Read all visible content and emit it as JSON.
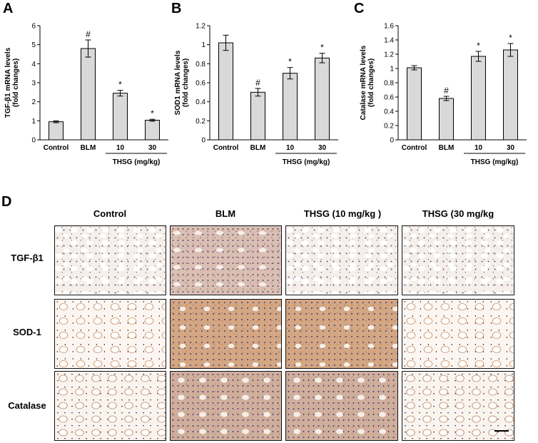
{
  "chart_data": [
    {
      "panel": "A",
      "type": "bar",
      "categories": [
        "Control",
        "BLM",
        "10",
        "30"
      ],
      "values": [
        0.95,
        4.8,
        2.45,
        1.03
      ],
      "errors": [
        0.05,
        0.45,
        0.15,
        0.05
      ],
      "annotations": [
        "",
        "#",
        "*",
        "*"
      ],
      "ylabel": [
        "TGF-β1 mRNA levels",
        "(fold changes)"
      ],
      "ylim": [
        0,
        6
      ],
      "yticks": [
        "0",
        "1",
        "2",
        "3",
        "4",
        "5",
        "6"
      ],
      "group_label": "THSG (mg/kg)",
      "bar_color": "#d9d9d9"
    },
    {
      "panel": "B",
      "type": "bar",
      "categories": [
        "Control",
        "BLM",
        "10",
        "30"
      ],
      "values": [
        1.02,
        0.5,
        0.7,
        0.86
      ],
      "errors": [
        0.08,
        0.04,
        0.06,
        0.05
      ],
      "annotations": [
        "",
        "#",
        "*",
        "*"
      ],
      "ylabel": [
        "SOD1 mRNA levels",
        "(fold changes)"
      ],
      "ylim": [
        0,
        1.2
      ],
      "yticks": [
        "0",
        "0.2",
        "0.4",
        "0.6",
        "0.8",
        "1",
        "1.2"
      ],
      "group_label": "THSG (mg/kg)",
      "bar_color": "#d9d9d9"
    },
    {
      "panel": "C",
      "type": "bar",
      "categories": [
        "Control",
        "BLM",
        "10",
        "30"
      ],
      "values": [
        1.01,
        0.58,
        1.17,
        1.26
      ],
      "errors": [
        0.03,
        0.03,
        0.07,
        0.09
      ],
      "annotations": [
        "",
        "#",
        "*",
        "*"
      ],
      "ylabel": [
        "Catalase mRNA levels",
        "(fold changes)"
      ],
      "ylim": [
        0,
        1.6
      ],
      "yticks": [
        "0",
        "0.2",
        "0.4",
        "0.6",
        "0.8",
        "1",
        "1.2",
        "1.4",
        "1.6"
      ],
      "group_label": "THSG (mg/kg)",
      "bar_color": "#d9d9d9"
    }
  ],
  "panel_d": {
    "letter": "D",
    "columns": [
      "Control",
      "BLM",
      "THSG (10 mg/kg )",
      "THSG (30 mg/kg"
    ],
    "rows": [
      "TGF-β1",
      "SOD-1",
      "Catalase"
    ]
  }
}
